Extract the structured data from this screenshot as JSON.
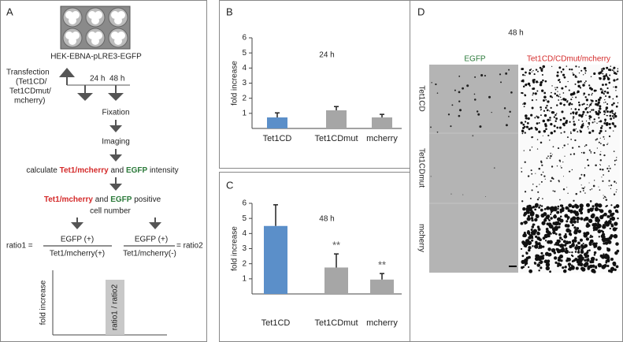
{
  "panel_labels": [
    "A",
    "B",
    "C",
    "D"
  ],
  "scheme": {
    "cell_line": "HEK-EBNA-pLRE3-EGFP",
    "transfection": [
      "Transfection",
      "(Tet1CD/",
      "Tet1CDmut/",
      "mcherry)"
    ],
    "timepoints": [
      "24 h",
      "48 h"
    ],
    "steps": [
      "Fixation",
      "Imaging"
    ],
    "intensity": [
      "calculate",
      "Tet1/mcherry",
      "and",
      "EGFP",
      "intensity"
    ],
    "positive": [
      "Tet1/mcherry",
      "and",
      "EGFP",
      "positive"
    ],
    "cell_number": "cell number",
    "ratio1": {
      "lhs": "ratio1 =",
      "numerator": "EGFP (+)",
      "denominator": "Tet1/mcherry(+)"
    },
    "ratio2": {
      "rhs": "= ratio2",
      "numerator": "EGFP (+)",
      "denominator": "Tet1/mcherry(-)"
    },
    "plot_ylabel": "fold increase",
    "plot_bar_label": "ratio1 / ratio2"
  },
  "chart_data": [
    {
      "type": "bar",
      "title": "24 h",
      "ylabel": "fold increase",
      "categories": [
        "Tet1CD",
        "Tet1CDmut",
        "mcherry"
      ],
      "values": [
        0.73,
        1.2,
        0.73
      ],
      "errors": [
        0.3,
        0.25,
        0.2
      ],
      "colors": [
        "#5b8fc9",
        "#a6a6a6",
        "#a6a6a6"
      ],
      "ylim": [
        0,
        6
      ],
      "yticks": [
        1,
        2,
        3,
        4,
        5,
        6
      ]
    },
    {
      "type": "bar",
      "title": "48 h",
      "ylabel": "fold increase",
      "categories": [
        "Tet1CD",
        "Tet1CDmut",
        "mcherry"
      ],
      "values": [
        4.5,
        1.75,
        0.95
      ],
      "errors": [
        1.4,
        0.9,
        0.4
      ],
      "significance": [
        null,
        "**",
        "**"
      ],
      "colors": [
        "#5b8fc9",
        "#a6a6a6",
        "#a6a6a6"
      ],
      "ylim": [
        0,
        6
      ],
      "yticks": [
        1,
        2,
        3,
        4,
        5,
        6
      ]
    }
  ],
  "micrographs": {
    "title": "48 h",
    "columns": [
      "EGFP",
      "Tet1CD/CDmut/mcherry"
    ],
    "rows": [
      "Tet1CD",
      "Tet1CDmut",
      "mcherry"
    ]
  }
}
